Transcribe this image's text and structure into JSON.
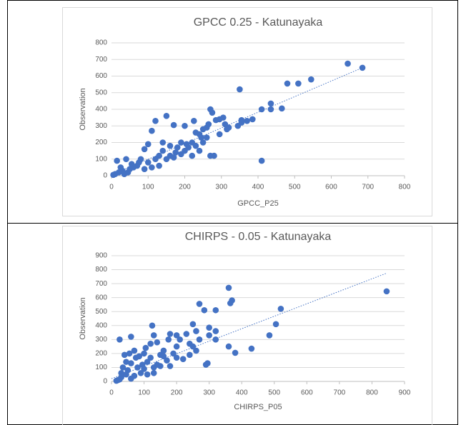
{
  "chart_data": [
    {
      "type": "scatter",
      "title": "GPCC 0.25 - Katunayaka",
      "x_label": "GPCC_P25",
      "y_label": "Observation",
      "color": "#4472c4",
      "xlim": [
        0,
        800
      ],
      "xticks": [
        0,
        100,
        200,
        300,
        400,
        500,
        600,
        700,
        800
      ],
      "ylim": [
        0,
        800
      ],
      "yticks": [
        0,
        100,
        200,
        300,
        400,
        500,
        600,
        700,
        800
      ],
      "x": [
        645,
        685,
        545,
        480,
        510,
        350,
        435,
        410,
        435,
        465,
        410,
        270,
        275,
        285,
        295,
        305,
        310,
        320,
        345,
        355,
        355,
        370,
        385,
        150,
        120,
        170,
        110,
        200,
        230,
        250,
        260,
        270,
        280,
        240,
        220,
        190,
        180,
        160,
        140,
        130,
        120,
        100,
        90,
        80,
        70,
        60,
        50,
        40,
        30,
        20,
        10,
        15,
        5,
        25,
        100,
        110,
        150,
        160,
        200,
        210,
        230,
        250,
        260,
        240,
        220,
        190,
        170,
        130,
        90,
        75,
        55,
        45,
        35,
        140,
        175,
        205,
        295,
        315,
        265,
        245,
        225
      ],
      "values": [
        675,
        650,
        580,
        555,
        555,
        520,
        435,
        400,
        400,
        405,
        90,
        400,
        380,
        335,
        340,
        350,
        310,
        290,
        300,
        320,
        335,
        330,
        340,
        360,
        330,
        305,
        270,
        300,
        260,
        280,
        290,
        120,
        120,
        250,
        200,
        200,
        170,
        180,
        150,
        120,
        100,
        190,
        160,
        100,
        60,
        50,
        40,
        100,
        30,
        20,
        10,
        90,
        5,
        50,
        80,
        50,
        100,
        120,
        150,
        170,
        180,
        200,
        230,
        150,
        120,
        130,
        110,
        60,
        40,
        80,
        70,
        20,
        10,
        200,
        140,
        190,
        250,
        280,
        310,
        230,
        330
      ],
      "trendline": {
        "x": [
          0,
          690
        ],
        "values": [
          5,
          655
        ]
      }
    },
    {
      "type": "scatter",
      "title": "CHIRPS - 0.05 - Katunayaka",
      "x_label": "CHIRPS_P05",
      "y_label": "Observation",
      "color": "#4472c4",
      "xlim": [
        0,
        900
      ],
      "xticks": [
        0,
        100,
        200,
        300,
        400,
        500,
        600,
        700,
        800,
        900
      ],
      "ylim": [
        0,
        900
      ],
      "yticks": [
        0,
        100,
        200,
        300,
        400,
        500,
        600,
        700,
        800,
        900
      ],
      "x": [
        845,
        520,
        505,
        485,
        430,
        380,
        370,
        365,
        360,
        360,
        320,
        320,
        320,
        300,
        295,
        290,
        285,
        300,
        270,
        260,
        250,
        250,
        240,
        230,
        210,
        200,
        190,
        180,
        170,
        160,
        150,
        140,
        130,
        125,
        120,
        120,
        110,
        100,
        95,
        90,
        80,
        70,
        60,
        55,
        50,
        45,
        40,
        35,
        30,
        25,
        20,
        15,
        30,
        60,
        70,
        100,
        110,
        130,
        150,
        160,
        180,
        200,
        220,
        240,
        260,
        270,
        130,
        85,
        105,
        75,
        140,
        200,
        175,
        60,
        25,
        45
      ],
      "values": [
        645,
        520,
        410,
        330,
        235,
        205,
        580,
        560,
        670,
        250,
        510,
        360,
        300,
        330,
        130,
        120,
        510,
        385,
        555,
        360,
        410,
        250,
        270,
        340,
        300,
        250,
        200,
        340,
        150,
        180,
        190,
        120,
        330,
        400,
        270,
        170,
        140,
        200,
        120,
        60,
        100,
        220,
        320,
        200,
        80,
        50,
        190,
        100,
        30,
        300,
        10,
        5,
        60,
        130,
        40,
        90,
        50,
        100,
        110,
        220,
        110,
        170,
        160,
        190,
        220,
        300,
        60,
        180,
        240,
        170,
        280,
        330,
        300,
        20,
        15,
        140
      ],
      "trendline": {
        "x": [
          0,
          845
        ],
        "values": [
          20,
          775
        ]
      }
    }
  ]
}
